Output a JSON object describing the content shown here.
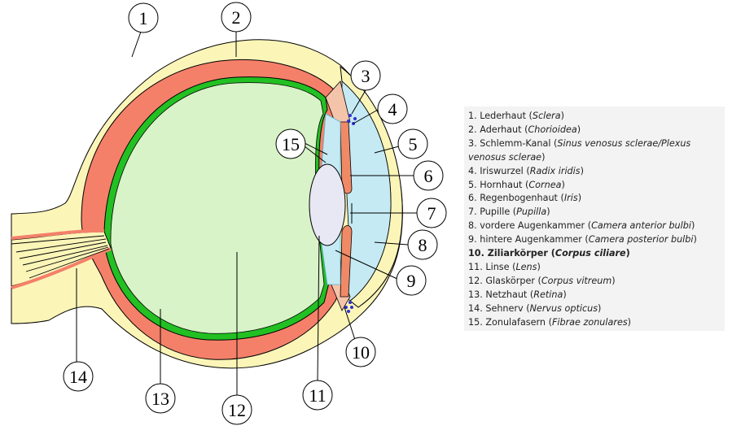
{
  "callouts": [
    "1",
    "2",
    "3",
    "4",
    "5",
    "6",
    "7",
    "8",
    "9",
    "10",
    "11",
    "12",
    "13",
    "14",
    "15"
  ],
  "legend": [
    {
      "n": "1.",
      "de": "Lederhaut",
      "la": "Sclera",
      "bold": false
    },
    {
      "n": "2.",
      "de": "Aderhaut",
      "la": "Chorioidea",
      "bold": false
    },
    {
      "n": "3.",
      "de": "Schlemm-Kanal",
      "la": "Sinus venosus sclerae/Plexus venosus sclerae",
      "bold": false
    },
    {
      "n": "4.",
      "de": "Iriswurzel",
      "la": "Radix iridis",
      "bold": false
    },
    {
      "n": "5.",
      "de": "Hornhaut",
      "la": "Cornea",
      "bold": false
    },
    {
      "n": "6.",
      "de": "Regenbogenhaut",
      "la": "Iris",
      "bold": false
    },
    {
      "n": "7.",
      "de": "Pupille",
      "la": "Pupilla",
      "bold": false
    },
    {
      "n": "8.",
      "de": "vordere Augenkammer",
      "la": "Camera anterior bulbi",
      "bold": false
    },
    {
      "n": "9.",
      "de": "hintere Augenkammer",
      "la": "Camera posterior bulbi",
      "bold": false
    },
    {
      "n": "10.",
      "de": "Ziliarkörper",
      "la": "Corpus ciliare",
      "bold": true
    },
    {
      "n": "11.",
      "de": "Linse",
      "la": "Lens",
      "bold": false
    },
    {
      "n": "12.",
      "de": "Glaskörper",
      "la": "Corpus vitreum",
      "bold": false
    },
    {
      "n": "13.",
      "de": "Netzhaut",
      "la": "Retina",
      "bold": false
    },
    {
      "n": "14.",
      "de": "Sehnerv",
      "la": "Nervus opticus",
      "bold": false
    },
    {
      "n": "15.",
      "de": "Zonulafasern",
      "la": "Fibrae zonulares",
      "bold": false
    }
  ],
  "colors": {
    "sclera": "#fbf5b8",
    "choroid": "#f4806a",
    "retina": "#22c022",
    "vitreous": "#d8f3c8",
    "chamber": "#c5eaf4",
    "iris": "#f08a66",
    "ciliary": "#f4c4aa",
    "lens": "#e8e8f5",
    "schlemm": "#3030d0",
    "outline": "#000000"
  }
}
